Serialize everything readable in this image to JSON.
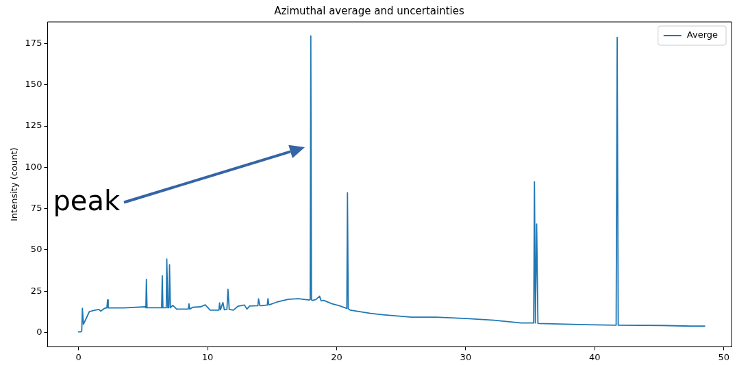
{
  "chart_data": {
    "type": "line",
    "title": "Azimuthal average and uncertainties",
    "ylabel": "Intensity (count)",
    "x": [
      0,
      0.17,
      0.25,
      0.3,
      0.38,
      0.84,
      1.23,
      1.58,
      1.72,
      2.0,
      2.2,
      2.25,
      2.3,
      3.5,
      5.17,
      5.22,
      5.26,
      5.31,
      6.0,
      6.44,
      6.49,
      6.54,
      6.8,
      6.84,
      6.92,
      7.0,
      7.05,
      7.12,
      7.3,
      7.6,
      8.5,
      8.56,
      8.62,
      8.86,
      9.47,
      9.82,
      10.2,
      10.88,
      10.93,
      11.0,
      11.19,
      11.3,
      11.5,
      11.58,
      11.68,
      12.0,
      12.37,
      12.86,
      13.05,
      13.26,
      13.9,
      13.95,
      14.05,
      14.2,
      14.63,
      14.68,
      14.75,
      15.35,
      16.23,
      17.02,
      17.89,
      17.95,
      18.0,
      18.05,
      18.1,
      18.4,
      18.68,
      18.8,
      19.0,
      19.65,
      20.2,
      20.79,
      20.84,
      20.9,
      20.97,
      21.06,
      22.63,
      23.58,
      25.8,
      27.7,
      30.05,
      32.2,
      34.3,
      35.27,
      35.33,
      35.4,
      35.5,
      35.6,
      35.66,
      39.3,
      41.66,
      41.74,
      41.82,
      41.9,
      45.14,
      47.46,
      48.52
    ],
    "series": [
      {
        "name": "Averge",
        "color": "#1f77b4",
        "values": [
          0.4,
          0.4,
          1,
          14.7,
          5,
          12.7,
          13.5,
          14,
          13,
          14.6,
          15,
          19.8,
          14.9,
          14.9,
          15.6,
          15,
          32.2,
          15,
          15,
          15,
          34.4,
          15,
          15,
          44.5,
          15,
          15,
          41,
          15,
          16.5,
          14.2,
          14.2,
          17.4,
          14.2,
          15.3,
          15.6,
          16.8,
          13.6,
          13.6,
          17.9,
          13.8,
          18.2,
          13.8,
          14,
          26.2,
          14,
          13.6,
          16,
          16.7,
          14.2,
          16.1,
          16.3,
          20.4,
          16.3,
          16.3,
          16.7,
          20.5,
          16.7,
          18.4,
          20.1,
          20.5,
          19.7,
          20,
          179.5,
          20,
          19.4,
          20,
          22,
          19.2,
          19.5,
          17.4,
          16.3,
          14.6,
          84.6,
          14.6,
          14,
          13.6,
          11.6,
          10.8,
          9.3,
          9.3,
          8.5,
          7.5,
          5.8,
          5.8,
          91.3,
          5.8,
          65.7,
          5.6,
          5.5,
          4.8,
          4.5,
          178.6,
          4.5,
          4.5,
          4.3,
          3.9,
          3.9
        ]
      }
    ],
    "xlim": [
      -2.4,
      50.6
    ],
    "ylim": [
      -8.6,
      188
    ],
    "xticks": [
      0,
      10,
      20,
      30,
      40,
      50
    ],
    "yticks": [
      0,
      25,
      50,
      75,
      100,
      125,
      150,
      175
    ],
    "grid": false,
    "legend": "top right",
    "marker": "none",
    "line_style": "solid",
    "annotations": [
      "peak"
    ]
  }
}
